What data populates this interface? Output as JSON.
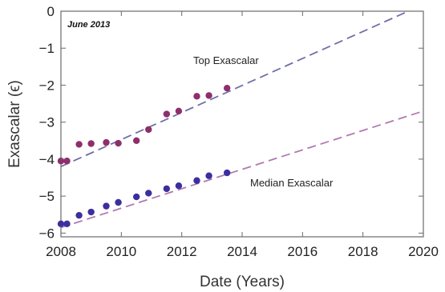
{
  "chart_data": {
    "type": "scatter",
    "annotation": "June 2013",
    "xlabel": "Date (Years)",
    "ylabel": "Exascalar (ϵ)",
    "xlim": [
      2008,
      2020
    ],
    "ylim": [
      -6.1,
      0
    ],
    "xticks": [
      2008,
      2010,
      2012,
      2014,
      2016,
      2018,
      2020
    ],
    "yticks": [
      0,
      -1,
      -2,
      -3,
      -4,
      -5,
      -6
    ],
    "series": [
      {
        "name": "Top Exascalar",
        "color": "#8e2f6c",
        "trend_color": "#6f6fa8",
        "points": [
          {
            "x": 2008.0,
            "y": -4.05
          },
          {
            "x": 2008.2,
            "y": -4.05
          },
          {
            "x": 2008.6,
            "y": -3.6
          },
          {
            "x": 2009.0,
            "y": -3.58
          },
          {
            "x": 2009.5,
            "y": -3.55
          },
          {
            "x": 2009.9,
            "y": -3.57
          },
          {
            "x": 2010.5,
            "y": -3.5
          },
          {
            "x": 2010.9,
            "y": -3.2
          },
          {
            "x": 2011.5,
            "y": -2.78
          },
          {
            "x": 2011.9,
            "y": -2.7
          },
          {
            "x": 2012.5,
            "y": -2.3
          },
          {
            "x": 2012.9,
            "y": -2.28
          },
          {
            "x": 2013.5,
            "y": -2.08
          }
        ],
        "trend": {
          "x": [
            2008.0,
            2019.5
          ],
          "y": [
            -4.2,
            0.0
          ]
        }
      },
      {
        "name": "Median Exascalar",
        "color": "#3b2f9e",
        "trend_color": "#b07ab0",
        "points": [
          {
            "x": 2008.0,
            "y": -5.75
          },
          {
            "x": 2008.2,
            "y": -5.75
          },
          {
            "x": 2008.6,
            "y": -5.52
          },
          {
            "x": 2009.0,
            "y": -5.43
          },
          {
            "x": 2009.5,
            "y": -5.27
          },
          {
            "x": 2009.9,
            "y": -5.17
          },
          {
            "x": 2010.5,
            "y": -5.02
          },
          {
            "x": 2010.9,
            "y": -4.92
          },
          {
            "x": 2011.5,
            "y": -4.8
          },
          {
            "x": 2011.9,
            "y": -4.72
          },
          {
            "x": 2012.5,
            "y": -4.58
          },
          {
            "x": 2012.9,
            "y": -4.45
          },
          {
            "x": 2013.5,
            "y": -4.37
          }
        ],
        "trend": {
          "x": [
            2008.0,
            2020.0
          ],
          "y": [
            -5.85,
            -2.7
          ]
        }
      }
    ]
  }
}
